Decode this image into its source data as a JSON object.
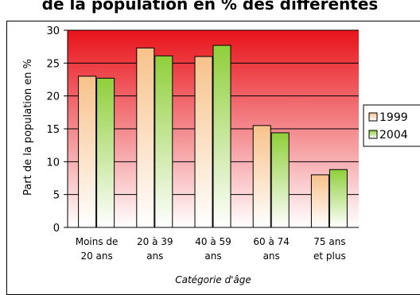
{
  "chart_data": {
    "type": "bar",
    "title": "de la population en % des différentes",
    "categories": [
      [
        "Moins de",
        "20 ans"
      ],
      [
        "20 à 39",
        "ans"
      ],
      [
        "40 à 59",
        "ans"
      ],
      [
        "60 à 74",
        "ans"
      ],
      [
        "75 ans",
        "et plus"
      ]
    ],
    "series": [
      {
        "name": "1999",
        "values": [
          23,
          27.3,
          26,
          15.5,
          8
        ],
        "color": "#f7c28a"
      },
      {
        "name": "2004",
        "values": [
          22.7,
          26.1,
          27.7,
          14.4,
          8.8
        ],
        "color": "#8fcf3a"
      }
    ],
    "xlabel": "Catégorie d'âge",
    "ylabel": "Part de la population en %",
    "ylim": [
      0,
      30
    ],
    "yticks": [
      0,
      5,
      10,
      15,
      20,
      25,
      30
    ],
    "grid": true,
    "legend": "right",
    "plot_background": {
      "top": "#e8131a",
      "bottom": "#ffffff"
    }
  }
}
